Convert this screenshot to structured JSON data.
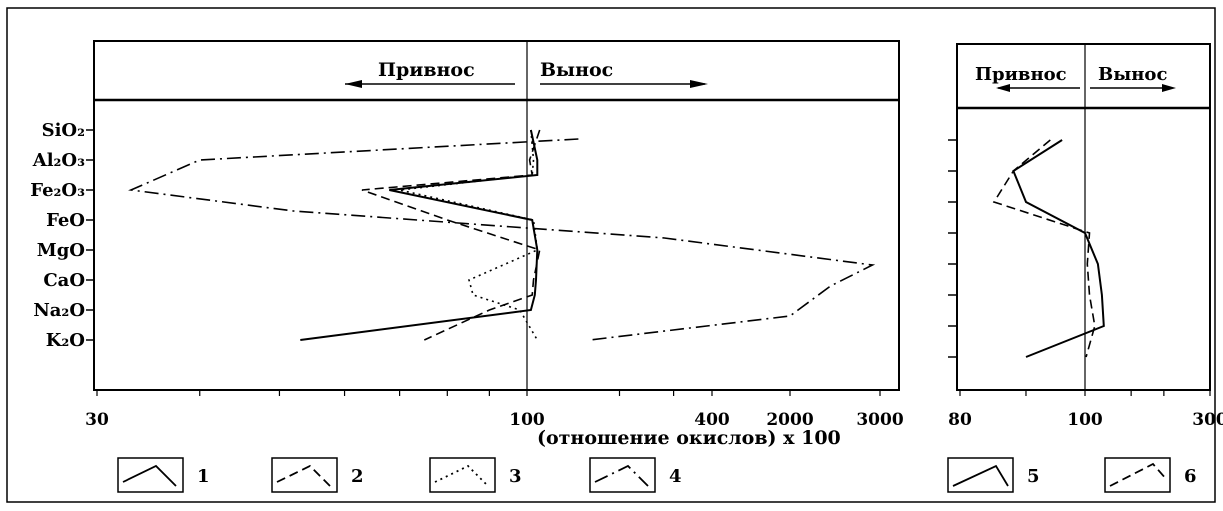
{
  "chart_data": [
    {
      "type": "line",
      "header": {
        "left": "Привнос",
        "right": "Вынос"
      },
      "y_categories": [
        "SiO₂",
        "Al₂O₃",
        "Fe₂O₃",
        "FeO",
        "MgO",
        "CaO",
        "Na₂O",
        "K₂O"
      ],
      "x_scale": "log",
      "xlim": [
        30,
        3000
      ],
      "x_ticks": [
        30,
        100,
        400,
        2000,
        3000
      ],
      "xlabel": "(отношение окислов) x 100",
      "reference_x": 100,
      "series": [
        {
          "name": "1",
          "style": "solid",
          "x": [
            103,
            108,
            108,
            68,
            104,
            108,
            107,
            106,
            103,
            53
          ]
        },
        {
          "name": "2",
          "style": "dashed",
          "x": [
            110,
            102,
            104,
            63,
            80,
            110,
            105,
            104,
            90,
            75
          ]
        },
        {
          "name": "3",
          "style": "dotted",
          "x": [
            103,
            105,
            104,
            70,
            105,
            108,
            85,
            86,
            98,
            108
          ]
        },
        {
          "name": "4",
          "style": "dashdot",
          "x": [
            147,
            40,
            33,
            52,
            null,
            280,
            2900,
            2400,
            2000,
            160
          ]
        }
      ],
      "series_y_index": [
        0,
        1,
        1.5,
        2,
        3,
        4,
        5,
        5.5,
        6,
        7
      ],
      "series4_y_index": [
        0.3,
        1,
        2,
        2.7,
        null,
        3.6,
        4.5,
        5.2,
        6.2,
        7
      ]
    },
    {
      "type": "line",
      "header": {
        "left": "Привнос",
        "right": "Вынос"
      },
      "y_count": 8,
      "x_scale": "log",
      "xlim": [
        80,
        300
      ],
      "x_ticks": [
        80,
        100,
        300
      ],
      "reference_x": 100,
      "series": [
        {
          "name": "5",
          "style": "solid",
          "x": [
            96,
            88,
            90,
            100,
            112,
            116,
            118,
            90
          ],
          "y_index": [
            0,
            1,
            2,
            3,
            4,
            5,
            6,
            7
          ]
        },
        {
          "name": "6",
          "style": "dashed",
          "x": [
            94,
            88,
            85,
            104,
            102,
            104,
            109,
            101
          ],
          "y_index": [
            0,
            1,
            2,
            3,
            4,
            5,
            6,
            7
          ]
        }
      ]
    }
  ],
  "legend": [
    {
      "label": "1",
      "style": "solid"
    },
    {
      "label": "2",
      "style": "dashed"
    },
    {
      "label": "3",
      "style": "dotted"
    },
    {
      "label": "4",
      "style": "dashdot"
    },
    {
      "label": "5",
      "style": "solid"
    },
    {
      "label": "6",
      "style": "dashed"
    }
  ]
}
